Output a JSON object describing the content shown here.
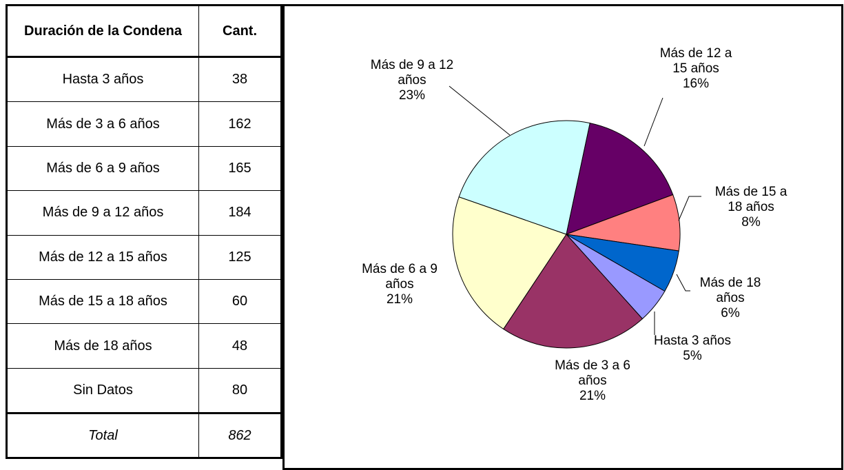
{
  "table": {
    "headers": [
      "Duración de la Condena",
      "Cant."
    ],
    "rows": [
      [
        "Hasta 3 años",
        38
      ],
      [
        "Más de 3 a 6 años",
        162
      ],
      [
        "Más de 6 a 9 años",
        165
      ],
      [
        "Más de 9 a 12 años",
        184
      ],
      [
        "Más de 12 a 15 años",
        125
      ],
      [
        "Más de 15 a 18 años",
        60
      ],
      [
        "Más de 18 años",
        48
      ],
      [
        "Sin Datos",
        80
      ]
    ],
    "total": [
      "Total",
      862
    ]
  },
  "chart_data": {
    "type": "pie",
    "categories": [
      "Hasta 3 años",
      "Más de 3 a 6 años",
      "Más de 6 a 9 años",
      "Más de 9 a 12 años",
      "Más de 12 a 15 años",
      "Más de 15 a 18 años",
      "Más de 18 años"
    ],
    "values": [
      5,
      21,
      21,
      23,
      16,
      8,
      6
    ],
    "value_labels": [
      "5%",
      "21%",
      "21%",
      "23%",
      "16%",
      "8%",
      "6%"
    ],
    "colors": [
      "#9999ff",
      "#993366",
      "#ffffcc",
      "#ccffff",
      "#660066",
      "#ff8080",
      "#0066cc"
    ]
  }
}
